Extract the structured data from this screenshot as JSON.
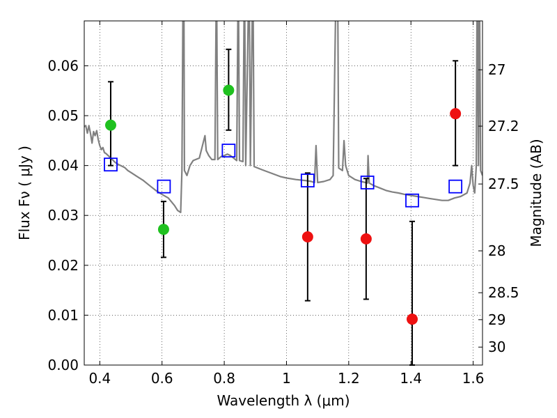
{
  "chart_data": {
    "type": "scatter",
    "title": "",
    "xlabel": "Wavelength  λ (μm)",
    "ylabel": "Flux  Fν  ( μJy )",
    "ylabel_right": "Magnitude (AB)",
    "xlim": [
      0.35,
      1.63
    ],
    "ylim": [
      0.0,
      0.069
    ],
    "grid": true,
    "x_ticks": [
      0.4,
      0.6,
      0.8,
      1.0,
      1.2,
      1.4,
      1.6
    ],
    "x_tick_labels": [
      "0.4",
      "0.6",
      "0.8",
      "1",
      "1.2",
      "1.4",
      "1.6"
    ],
    "y_ticks": [
      0.0,
      0.01,
      0.02,
      0.03,
      0.04,
      0.05,
      0.06
    ],
    "y_tick_labels": [
      "0.00",
      "0.01",
      "0.02",
      "0.03",
      "0.04",
      "0.05",
      "0.06"
    ],
    "right_ticks": [
      {
        "label": "27",
        "flux": 0.0592
      },
      {
        "label": "27.2",
        "flux": 0.0479
      },
      {
        "label": "27.5",
        "flux": 0.0363
      },
      {
        "label": "28",
        "flux": 0.0229
      },
      {
        "label": "28.5",
        "flux": 0.0145
      },
      {
        "label": "29",
        "flux": 0.0091
      },
      {
        "label": "30",
        "flux": 0.0036
      }
    ],
    "colors": {
      "green": "#1fc11f",
      "red": "#ee1111",
      "model_squares": "#0000ff",
      "sed_line": "#808080",
      "errorbar": "#000000"
    },
    "measured_green": [
      {
        "x": 0.435,
        "y": 0.0481,
        "err_low": 0.0081,
        "err_high": 0.0087
      },
      {
        "x": 0.605,
        "y": 0.0272,
        "err_low": 0.0056,
        "err_high": 0.0056
      },
      {
        "x": 0.814,
        "y": 0.0551,
        "err_low": 0.008,
        "err_high": 0.0082
      }
    ],
    "measured_red": [
      {
        "x": 1.068,
        "y": 0.0257,
        "err_low": 0.0128,
        "err_high": 0.0128
      },
      {
        "x": 1.256,
        "y": 0.0253,
        "err_low": 0.0121,
        "err_high": 0.0121
      },
      {
        "x": 1.404,
        "y": 0.0092,
        "err_low": 0.0092,
        "err_high": 0.0196
      },
      {
        "x": 1.543,
        "y": 0.0504,
        "err_low": 0.0104,
        "err_high": 0.0106
      }
    ],
    "model_squares": [
      {
        "x": 0.435,
        "y": 0.0402
      },
      {
        "x": 0.606,
        "y": 0.0358
      },
      {
        "x": 0.814,
        "y": 0.043
      },
      {
        "x": 1.068,
        "y": 0.037
      },
      {
        "x": 1.26,
        "y": 0.0366
      },
      {
        "x": 1.404,
        "y": 0.033
      },
      {
        "x": 1.543,
        "y": 0.0358
      }
    ],
    "sed_line": [
      [
        0.35,
        0.0478
      ],
      [
        0.355,
        0.048
      ],
      [
        0.36,
        0.0465
      ],
      [
        0.365,
        0.048
      ],
      [
        0.37,
        0.0465
      ],
      [
        0.375,
        0.0445
      ],
      [
        0.38,
        0.0468
      ],
      [
        0.385,
        0.046
      ],
      [
        0.39,
        0.047
      ],
      [
        0.395,
        0.0452
      ],
      [
        0.4,
        0.044
      ],
      [
        0.405,
        0.0432
      ],
      [
        0.41,
        0.0436
      ],
      [
        0.415,
        0.0426
      ],
      [
        0.42,
        0.0424
      ],
      [
        0.43,
        0.0418
      ],
      [
        0.44,
        0.0412
      ],
      [
        0.45,
        0.0406
      ],
      [
        0.46,
        0.0402
      ],
      [
        0.47,
        0.0399
      ],
      [
        0.48,
        0.0396
      ],
      [
        0.49,
        0.039
      ],
      [
        0.5,
        0.0386
      ],
      [
        0.52,
        0.0378
      ],
      [
        0.54,
        0.037
      ],
      [
        0.56,
        0.036
      ],
      [
        0.58,
        0.035
      ],
      [
        0.6,
        0.0342
      ],
      [
        0.62,
        0.0335
      ],
      [
        0.64,
        0.032
      ],
      [
        0.65,
        0.031
      ],
      [
        0.66,
        0.0306
      ],
      [
        0.664,
        0.039
      ],
      [
        0.668,
        0.08
      ],
      [
        0.67,
        0.08
      ],
      [
        0.672,
        0.039
      ],
      [
        0.68,
        0.038
      ],
      [
        0.69,
        0.04
      ],
      [
        0.7,
        0.041
      ],
      [
        0.72,
        0.0415
      ],
      [
        0.73,
        0.044
      ],
      [
        0.738,
        0.046
      ],
      [
        0.742,
        0.043
      ],
      [
        0.75,
        0.042
      ],
      [
        0.76,
        0.0412
      ],
      [
        0.77,
        0.0412
      ],
      [
        0.775,
        0.08
      ],
      [
        0.779,
        0.0412
      ],
      [
        0.79,
        0.0418
      ],
      [
        0.8,
        0.042
      ],
      [
        0.81,
        0.0423
      ],
      [
        0.82,
        0.042
      ],
      [
        0.83,
        0.0415
      ],
      [
        0.84,
        0.041
      ],
      [
        0.845,
        0.08
      ],
      [
        0.849,
        0.041
      ],
      [
        0.86,
        0.0408
      ],
      [
        0.865,
        0.08
      ],
      [
        0.869,
        0.04
      ],
      [
        0.88,
        0.08
      ],
      [
        0.884,
        0.04
      ],
      [
        0.892,
        0.08
      ],
      [
        0.896,
        0.0398
      ],
      [
        0.92,
        0.0392
      ],
      [
        0.95,
        0.0385
      ],
      [
        0.98,
        0.0378
      ],
      [
        1.0,
        0.0375
      ],
      [
        1.03,
        0.0372
      ],
      [
        1.06,
        0.037
      ],
      [
        1.08,
        0.0368
      ],
      [
        1.09,
        0.0366
      ],
      [
        1.095,
        0.044
      ],
      [
        1.1,
        0.0366
      ],
      [
        1.12,
        0.0368
      ],
      [
        1.14,
        0.0372
      ],
      [
        1.15,
        0.038
      ],
      [
        1.16,
        0.08
      ],
      [
        1.164,
        0.08
      ],
      [
        1.168,
        0.0395
      ],
      [
        1.18,
        0.039
      ],
      [
        1.185,
        0.045
      ],
      [
        1.19,
        0.04
      ],
      [
        1.2,
        0.038
      ],
      [
        1.22,
        0.0372
      ],
      [
        1.24,
        0.0368
      ],
      [
        1.26,
        0.0365
      ],
      [
        1.262,
        0.042
      ],
      [
        1.266,
        0.0365
      ],
      [
        1.28,
        0.036
      ],
      [
        1.3,
        0.0355
      ],
      [
        1.32,
        0.035
      ],
      [
        1.34,
        0.0347
      ],
      [
        1.36,
        0.0345
      ],
      [
        1.38,
        0.0342
      ],
      [
        1.4,
        0.034
      ],
      [
        1.42,
        0.0338
      ],
      [
        1.44,
        0.0336
      ],
      [
        1.46,
        0.0334
      ],
      [
        1.48,
        0.0332
      ],
      [
        1.5,
        0.033
      ],
      [
        1.52,
        0.033
      ],
      [
        1.54,
        0.0335
      ],
      [
        1.56,
        0.0338
      ],
      [
        1.58,
        0.0345
      ],
      [
        1.59,
        0.0365
      ],
      [
        1.595,
        0.04
      ],
      [
        1.6,
        0.036
      ],
      [
        1.605,
        0.0345
      ],
      [
        1.61,
        0.04
      ],
      [
        1.613,
        0.08
      ],
      [
        1.617,
        0.04
      ],
      [
        1.62,
        0.08
      ],
      [
        1.624,
        0.039
      ],
      [
        1.63,
        0.038
      ]
    ]
  }
}
